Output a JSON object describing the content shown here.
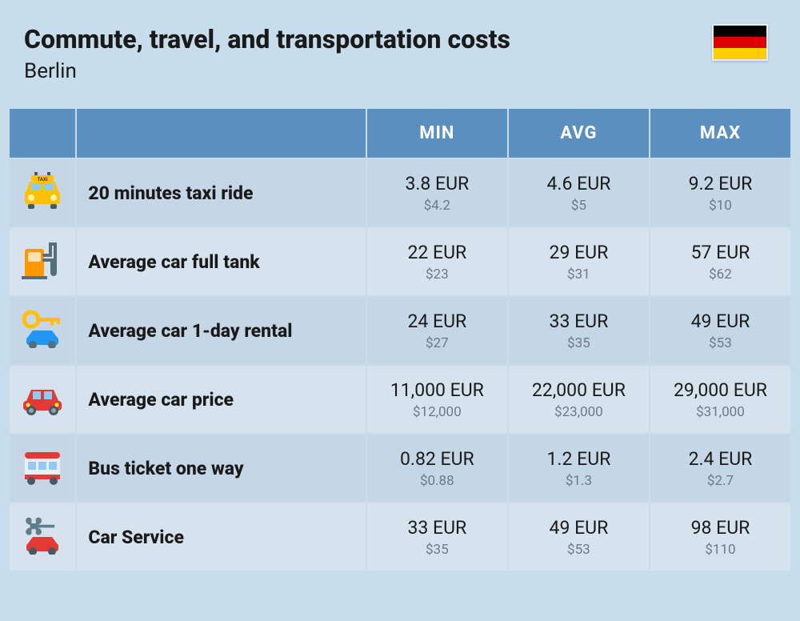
{
  "header": {
    "title": "Commute, travel, and transportation costs",
    "subtitle": "Berlin",
    "flag_colors": [
      "#000000",
      "#dd0000",
      "#ffce00"
    ]
  },
  "table": {
    "header_bg": "#5b8fbf",
    "header_fg": "#ffffff",
    "row_bg_odd": "#c5d6e6",
    "row_bg_even": "#d6e3ee",
    "col_headers": [
      "MIN",
      "AVG",
      "MAX"
    ],
    "rows": [
      {
        "icon": "taxi-icon",
        "label": "20 minutes taxi ride",
        "min": {
          "eur": "3.8 EUR",
          "usd": "$4.2"
        },
        "avg": {
          "eur": "4.6 EUR",
          "usd": "$5"
        },
        "max": {
          "eur": "9.2 EUR",
          "usd": "$10"
        }
      },
      {
        "icon": "fuel-pump-icon",
        "label": "Average car full tank",
        "min": {
          "eur": "22 EUR",
          "usd": "$23"
        },
        "avg": {
          "eur": "29 EUR",
          "usd": "$31"
        },
        "max": {
          "eur": "57 EUR",
          "usd": "$62"
        }
      },
      {
        "icon": "car-key-icon",
        "label": "Average car 1-day rental",
        "min": {
          "eur": "24 EUR",
          "usd": "$27"
        },
        "avg": {
          "eur": "33 EUR",
          "usd": "$35"
        },
        "max": {
          "eur": "49 EUR",
          "usd": "$53"
        }
      },
      {
        "icon": "car-icon",
        "label": "Average car price",
        "min": {
          "eur": "11,000 EUR",
          "usd": "$12,000"
        },
        "avg": {
          "eur": "22,000 EUR",
          "usd": "$23,000"
        },
        "max": {
          "eur": "29,000 EUR",
          "usd": "$31,000"
        }
      },
      {
        "icon": "bus-icon",
        "label": "Bus ticket one way",
        "min": {
          "eur": "0.82 EUR",
          "usd": "$0.88"
        },
        "avg": {
          "eur": "1.2 EUR",
          "usd": "$1.3"
        },
        "max": {
          "eur": "2.4 EUR",
          "usd": "$2.7"
        }
      },
      {
        "icon": "wrench-car-icon",
        "label": "Car Service",
        "min": {
          "eur": "33 EUR",
          "usd": "$35"
        },
        "avg": {
          "eur": "49 EUR",
          "usd": "$53"
        },
        "max": {
          "eur": "98 EUR",
          "usd": "$110"
        }
      }
    ]
  },
  "styling": {
    "page_bg": "#c7ddeb",
    "title_fontsize": 32,
    "subtitle_fontsize": 26,
    "label_fontsize": 23,
    "value_fontsize": 23,
    "subvalue_fontsize": 17,
    "subvalue_color": "#6b7a8a"
  }
}
